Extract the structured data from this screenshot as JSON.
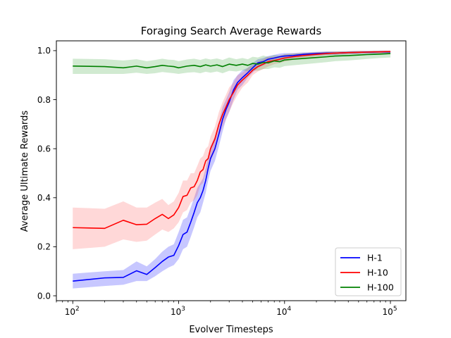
{
  "chart_data": {
    "type": "line",
    "title": "Foraging Search Average Rewards",
    "xlabel": "Evolver Timesteps",
    "ylabel": "Average Ultimate Rewards",
    "xscale": "log",
    "xlim": [
      70,
      140000
    ],
    "ylim": [
      -0.02,
      1.04
    ],
    "x_ticks": [
      {
        "value": 100,
        "base": "10",
        "exp": "2"
      },
      {
        "value": 1000,
        "base": "10",
        "exp": "3"
      },
      {
        "value": 10000,
        "base": "10",
        "exp": "4"
      },
      {
        "value": 100000,
        "base": "10",
        "exp": "5"
      }
    ],
    "y_ticks": [
      "0.0",
      "0.2",
      "0.4",
      "0.6",
      "0.8",
      "1.0"
    ],
    "legend": {
      "position": "lower-right"
    },
    "series": [
      {
        "name": "H-1",
        "color": "#0000ff",
        "band_color": "#0000ff",
        "x": [
          100,
          200,
          300,
          400,
          500,
          600,
          700,
          800,
          900,
          1000,
          1100,
          1200,
          1300,
          1400,
          1500,
          1600,
          1700,
          1800,
          1900,
          2000,
          2200,
          2400,
          2600,
          2800,
          3000,
          3300,
          3600,
          4000,
          4500,
          5000,
          5600,
          6300,
          7000,
          8000,
          9000,
          10000,
          12000,
          15000,
          20000,
          25000,
          30000,
          40000,
          50000,
          60000,
          70000,
          80000,
          90000,
          100000
        ],
        "y": [
          0.06,
          0.073,
          0.075,
          0.102,
          0.087,
          0.115,
          0.14,
          0.158,
          0.165,
          0.205,
          0.25,
          0.26,
          0.3,
          0.34,
          0.38,
          0.4,
          0.43,
          0.47,
          0.52,
          0.56,
          0.6,
          0.66,
          0.72,
          0.76,
          0.79,
          0.84,
          0.87,
          0.89,
          0.91,
          0.93,
          0.95,
          0.955,
          0.965,
          0.97,
          0.975,
          0.978,
          0.98,
          0.985,
          0.988,
          0.99,
          0.99,
          0.992,
          0.993,
          0.994,
          0.994,
          0.995,
          0.995,
          0.995
        ],
        "low": [
          0.03,
          0.04,
          0.045,
          0.06,
          0.06,
          0.08,
          0.1,
          0.115,
          0.125,
          0.15,
          0.19,
          0.2,
          0.24,
          0.28,
          0.32,
          0.34,
          0.38,
          0.42,
          0.47,
          0.51,
          0.55,
          0.61,
          0.67,
          0.72,
          0.75,
          0.8,
          0.84,
          0.86,
          0.89,
          0.91,
          0.93,
          0.94,
          0.95,
          0.955,
          0.96,
          0.965,
          0.97,
          0.975,
          0.98,
          0.982,
          0.983,
          0.985,
          0.986,
          0.987,
          0.987,
          0.988,
          0.988,
          0.988
        ],
        "high": [
          0.09,
          0.1,
          0.105,
          0.14,
          0.12,
          0.15,
          0.18,
          0.2,
          0.21,
          0.26,
          0.31,
          0.32,
          0.36,
          0.4,
          0.44,
          0.46,
          0.48,
          0.52,
          0.57,
          0.61,
          0.65,
          0.71,
          0.77,
          0.8,
          0.83,
          0.88,
          0.9,
          0.92,
          0.93,
          0.95,
          0.965,
          0.97,
          0.978,
          0.983,
          0.988,
          0.99,
          0.99,
          0.993,
          0.995,
          0.997,
          0.997,
          0.998,
          0.999,
          0.999,
          0.999,
          1.0,
          1.0,
          1.0
        ]
      },
      {
        "name": "H-10",
        "color": "#ff0000",
        "band_color": "#ff4d4d",
        "x": [
          100,
          200,
          300,
          400,
          500,
          600,
          700,
          800,
          900,
          1000,
          1100,
          1200,
          1300,
          1400,
          1500,
          1600,
          1700,
          1800,
          1900,
          2000,
          2200,
          2400,
          2600,
          2800,
          3000,
          3300,
          3600,
          4000,
          4500,
          5000,
          5600,
          6300,
          7000,
          8000,
          9000,
          10000,
          12000,
          15000,
          20000,
          25000,
          30000,
          40000,
          50000,
          60000,
          70000,
          80000,
          90000,
          100000
        ],
        "y": [
          0.278,
          0.275,
          0.308,
          0.29,
          0.292,
          0.315,
          0.332,
          0.315,
          0.33,
          0.36,
          0.405,
          0.41,
          0.44,
          0.445,
          0.47,
          0.505,
          0.515,
          0.55,
          0.56,
          0.6,
          0.64,
          0.7,
          0.74,
          0.77,
          0.8,
          0.83,
          0.86,
          0.88,
          0.9,
          0.92,
          0.935,
          0.945,
          0.955,
          0.96,
          0.965,
          0.97,
          0.975,
          0.98,
          0.985,
          0.988,
          0.99,
          0.992,
          0.993,
          0.994,
          0.995,
          0.995,
          0.996,
          0.996
        ],
        "low": [
          0.19,
          0.2,
          0.23,
          0.22,
          0.225,
          0.25,
          0.27,
          0.26,
          0.275,
          0.3,
          0.34,
          0.35,
          0.38,
          0.39,
          0.41,
          0.45,
          0.46,
          0.5,
          0.51,
          0.55,
          0.59,
          0.65,
          0.69,
          0.72,
          0.75,
          0.79,
          0.82,
          0.85,
          0.87,
          0.9,
          0.915,
          0.925,
          0.935,
          0.945,
          0.95,
          0.955,
          0.962,
          0.97,
          0.976,
          0.98,
          0.983,
          0.986,
          0.987,
          0.988,
          0.989,
          0.989,
          0.99,
          0.99
        ],
        "high": [
          0.36,
          0.355,
          0.385,
          0.36,
          0.36,
          0.38,
          0.395,
          0.37,
          0.385,
          0.42,
          0.47,
          0.47,
          0.5,
          0.5,
          0.53,
          0.56,
          0.57,
          0.6,
          0.61,
          0.65,
          0.69,
          0.75,
          0.79,
          0.82,
          0.85,
          0.87,
          0.9,
          0.91,
          0.93,
          0.94,
          0.955,
          0.965,
          0.975,
          0.975,
          0.98,
          0.985,
          0.988,
          0.99,
          0.994,
          0.996,
          0.997,
          0.998,
          0.999,
          0.999,
          1.0,
          1.0,
          1.0,
          1.0
        ]
      },
      {
        "name": "H-100",
        "color": "#008000",
        "band_color": "#2ca02c",
        "x": [
          100,
          200,
          300,
          400,
          500,
          600,
          700,
          800,
          900,
          1000,
          1200,
          1400,
          1600,
          1800,
          2000,
          2300,
          2600,
          3000,
          3500,
          4000,
          4500,
          5000,
          5600,
          6300,
          7000,
          8000,
          9000,
          10000,
          12000,
          15000,
          20000,
          25000,
          30000,
          40000,
          50000,
          60000,
          70000,
          80000,
          90000,
          100000
        ],
        "y": [
          0.937,
          0.935,
          0.93,
          0.937,
          0.93,
          0.935,
          0.94,
          0.937,
          0.935,
          0.93,
          0.937,
          0.94,
          0.935,
          0.942,
          0.937,
          0.942,
          0.935,
          0.945,
          0.94,
          0.945,
          0.94,
          0.948,
          0.945,
          0.952,
          0.95,
          0.958,
          0.955,
          0.962,
          0.965,
          0.968,
          0.972,
          0.975,
          0.978,
          0.98,
          0.982,
          0.984,
          0.985,
          0.986,
          0.987,
          0.988
        ],
        "low": [
          0.905,
          0.905,
          0.905,
          0.91,
          0.905,
          0.908,
          0.913,
          0.91,
          0.908,
          0.905,
          0.91,
          0.912,
          0.908,
          0.914,
          0.91,
          0.915,
          0.908,
          0.918,
          0.915,
          0.92,
          0.915,
          0.92,
          0.918,
          0.925,
          0.925,
          0.932,
          0.93,
          0.937,
          0.94,
          0.944,
          0.949,
          0.953,
          0.957,
          0.96,
          0.963,
          0.966,
          0.968,
          0.97,
          0.971,
          0.972
        ],
        "high": [
          0.967,
          0.965,
          0.96,
          0.965,
          0.957,
          0.962,
          0.967,
          0.963,
          0.962,
          0.957,
          0.964,
          0.967,
          0.962,
          0.968,
          0.964,
          0.968,
          0.962,
          0.972,
          0.965,
          0.97,
          0.965,
          0.975,
          0.972,
          0.98,
          0.975,
          0.983,
          0.98,
          0.985,
          0.988,
          0.99,
          0.993,
          0.995,
          0.996,
          0.997,
          0.998,
          0.998,
          0.999,
          0.999,
          0.999,
          1.0
        ]
      }
    ]
  }
}
